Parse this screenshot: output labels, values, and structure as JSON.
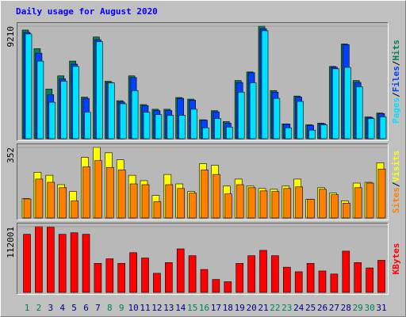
{
  "chart_data": [
    {
      "type": "bar",
      "title": "Daily usage for August 2020",
      "title_color": "#0000ff",
      "ylim": [
        0,
        9210
      ],
      "yticks": [
        9210
      ],
      "legend_separator": "/",
      "series": [
        {
          "name": "Hits",
          "color": "#00805c",
          "values": [
            8890,
            7370,
            4060,
            5140,
            6350,
            3400,
            8320,
            4700,
            3110,
            5140,
            2790,
            2410,
            2410,
            3370,
            3240,
            1550,
            2290,
            1400,
            4760,
            5460,
            9210,
            3940,
            1210,
            3490,
            1140,
            1270,
            5910,
            7750,
            4760,
            1780,
            2100
          ]
        },
        {
          "name": "Files",
          "color": "#0040ff",
          "values": [
            8700,
            7000,
            3600,
            4900,
            6100,
            3300,
            8100,
            4600,
            3000,
            5000,
            2700,
            2300,
            2300,
            3300,
            3150,
            1520,
            2200,
            1270,
            4600,
            5400,
            9000,
            3810,
            1200,
            3400,
            1100,
            1230,
            5850,
            7700,
            4600,
            1750,
            2050
          ]
        },
        {
          "name": "Pages",
          "color": "#00e0ff",
          "values": [
            8570,
            6350,
            2980,
            4700,
            5910,
            2160,
            7940,
            4570,
            2860,
            3940,
            2160,
            1970,
            1910,
            1910,
            2410,
            890,
            1650,
            950,
            3810,
            4570,
            8830,
            3300,
            890,
            3050,
            700,
            1140,
            5720,
            5840,
            4250,
            1650,
            1780
          ]
        }
      ]
    },
    {
      "type": "bar",
      "ylim": [
        0,
        352
      ],
      "yticks": [
        352
      ],
      "legend_separator": "/",
      "series": [
        {
          "name": "Visits",
          "color": "#ffff00",
          "values": [
            97,
            228,
            213,
            166,
            132,
            302,
            352,
            325,
            290,
            213,
            186,
            112,
            217,
            170,
            132,
            271,
            263,
            159,
            194,
            159,
            147,
            143,
            159,
            194,
            93,
            151,
            124,
            85,
            174,
            178,
            275
          ]
        },
        {
          "name": "Sites",
          "color": "#ff8000",
          "values": [
            95,
            194,
            178,
            151,
            85,
            255,
            286,
            252,
            240,
            170,
            166,
            81,
            166,
            147,
            124,
            240,
            217,
            120,
            166,
            151,
            135,
            132,
            147,
            155,
            93,
            143,
            116,
            74,
            151,
            174,
            244
          ]
        }
      ]
    },
    {
      "type": "bar",
      "ylim": [
        0,
        112001
      ],
      "yticks": [
        112001
      ],
      "categories": [
        "1",
        "2",
        "3",
        "4",
        "5",
        "6",
        "7",
        "8",
        "9",
        "10",
        "11",
        "12",
        "13",
        "14",
        "15",
        "16",
        "17",
        "18",
        "19",
        "20",
        "21",
        "22",
        "23",
        "24",
        "25",
        "26",
        "27",
        "28",
        "29",
        "30",
        "31"
      ],
      "category_colors": [
        "#00805c",
        "#00805c",
        "#000080",
        "#000080",
        "#000080",
        "#000080",
        "#000080",
        "#00805c",
        "#00805c",
        "#000080",
        "#000080",
        "#000080",
        "#000080",
        "#000080",
        "#00805c",
        "#00805c",
        "#000080",
        "#000080",
        "#000080",
        "#000080",
        "#000080",
        "#00805c",
        "#00805c",
        "#000080",
        "#000080",
        "#000080",
        "#000080",
        "#000080",
        "#00805c",
        "#00805c",
        "#000080"
      ],
      "series": [
        {
          "name": "KBytes",
          "color": "#ff0000",
          "values": [
            99000,
            112001,
            111000,
            99000,
            101600,
            99000,
            49500,
            57300,
            49500,
            67700,
            58600,
            32600,
            50800,
            74200,
            62500,
            39100,
            22100,
            18200,
            49500,
            62500,
            71600,
            62500,
            43000,
            35200,
            49500,
            36500,
            31300,
            70300,
            50800,
            41700,
            54700
          ]
        }
      ]
    }
  ]
}
